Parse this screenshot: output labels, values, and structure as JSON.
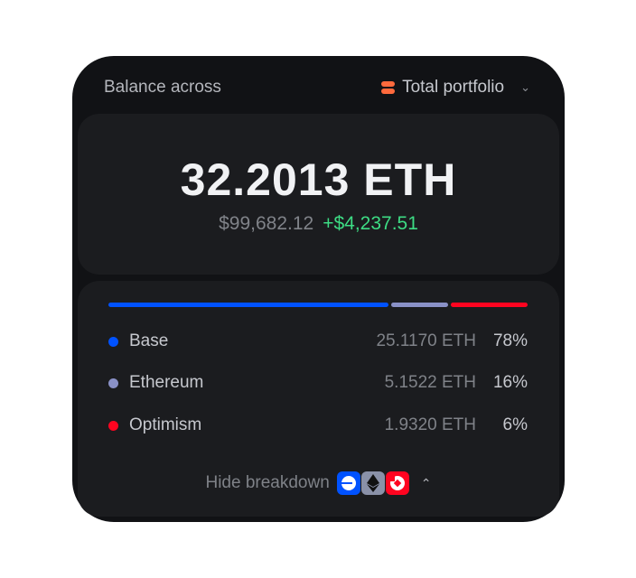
{
  "header": {
    "label": "Balance across",
    "selector": "Total portfolio",
    "selector_icon": "coins-icon"
  },
  "balance": {
    "amount": "32.2013 ETH",
    "usd": "$99,682.12",
    "change": "+$4,237.51"
  },
  "colors": {
    "base": "#0052ff",
    "ethereum": "#8a91c7",
    "optimism": "#ff0420",
    "positive": "#3ddc84"
  },
  "breakdown": [
    {
      "name": "Base",
      "amount": "25.1170 ETH",
      "percent": "78%",
      "share": 78,
      "color": "#0052ff"
    },
    {
      "name": "Ethereum",
      "amount": "5.1522 ETH",
      "percent": "16%",
      "share": 16,
      "color": "#8a91c7"
    },
    {
      "name": "Optimism",
      "amount": "1.9320 ETH",
      "percent": "6%",
      "share": 6,
      "color": "#ff0420"
    }
  ],
  "footer": {
    "toggle": "Hide breakdown"
  }
}
